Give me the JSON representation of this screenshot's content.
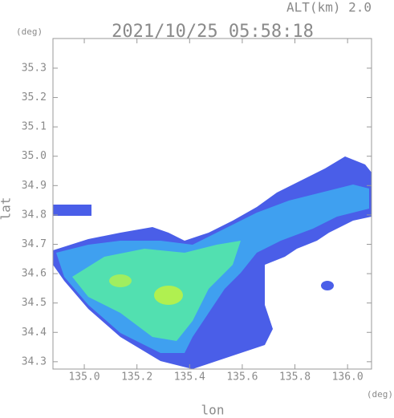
{
  "chart_data": {
    "type": "heatmap",
    "title": "2021/10/25 05:58:18",
    "subtitle": "ALT(km) 2.0",
    "y_unit": "(deg)",
    "x_unit": "(deg)",
    "xlabel": "lon",
    "ylabel": "lat",
    "xlim": [
      134.881,
      136.091
    ],
    "ylim": [
      34.275,
      35.401
    ],
    "xticks": [
      {
        "value": 135,
        "label": "135.0"
      },
      135.2,
      135.4,
      135.6,
      135.8,
      {
        "value": 136,
        "label": "136.0"
      }
    ],
    "yticks": [
      34.3,
      34.4,
      34.5,
      34.6,
      34.7,
      34.8,
      34.9,
      {
        "value": 35,
        "label": "35.0"
      },
      35.1,
      35.2,
      35.3
    ]
  }
}
